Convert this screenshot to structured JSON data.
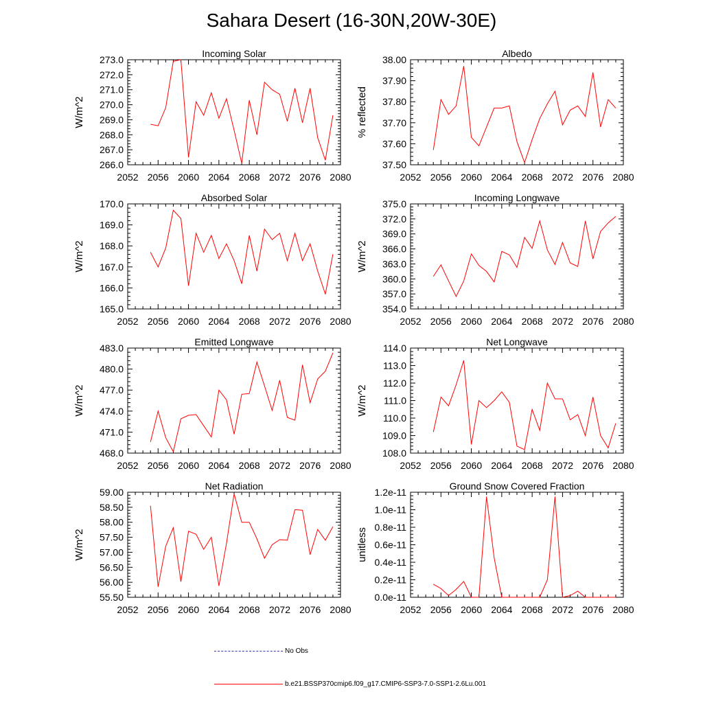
{
  "title": "Sahara Desert (16-30N,20W-30E)",
  "legend": {
    "obs_label": "No Obs",
    "model_label": "b.e21.BSSP370cmip6.f09_g17.CMIP6-SSP3-7.0-SSP1-2.6Lu.001",
    "obs_color": "#3333aa",
    "model_color": "#ff0000"
  },
  "chart_data": [
    {
      "type": "line",
      "title": "Incoming Solar",
      "ylabel": "W/m^2",
      "xlim": [
        2052,
        2080
      ],
      "ylim": [
        266.0,
        273.0
      ],
      "xticks": [
        2052,
        2056,
        2060,
        2064,
        2068,
        2072,
        2076,
        2080
      ],
      "yticks": [
        "266.0",
        "267.0",
        "268.0",
        "269.0",
        "270.0",
        "271.0",
        "272.0",
        "273.0"
      ],
      "x": [
        2055,
        2056,
        2057,
        2058,
        2059,
        2060,
        2061,
        2062,
        2063,
        2064,
        2065,
        2066,
        2067,
        2068,
        2069,
        2070,
        2071,
        2072,
        2073,
        2074,
        2075,
        2076,
        2077,
        2078,
        2079
      ],
      "values": [
        268.7,
        268.6,
        269.8,
        272.9,
        273.0,
        266.5,
        270.2,
        269.3,
        270.8,
        269.1,
        270.4,
        268.3,
        266.1,
        270.3,
        268.0,
        271.5,
        271.0,
        270.7,
        268.9,
        271.1,
        268.8,
        271.1,
        267.8,
        266.3,
        269.3
      ]
    },
    {
      "type": "line",
      "title": "Albedo",
      "ylabel": "% reflected",
      "xlim": [
        2052,
        2080
      ],
      "ylim": [
        37.5,
        38.0
      ],
      "xticks": [
        2052,
        2056,
        2060,
        2064,
        2068,
        2072,
        2076,
        2080
      ],
      "yticks": [
        "37.50",
        "37.60",
        "37.70",
        "37.80",
        "37.90",
        "38.00"
      ],
      "x": [
        2055,
        2056,
        2057,
        2058,
        2059,
        2060,
        2061,
        2062,
        2063,
        2064,
        2065,
        2066,
        2067,
        2068,
        2069,
        2070,
        2071,
        2072,
        2073,
        2074,
        2075,
        2076,
        2077,
        2078,
        2079
      ],
      "values": [
        37.57,
        37.81,
        37.74,
        37.78,
        37.97,
        37.63,
        37.59,
        37.68,
        37.77,
        37.77,
        37.78,
        37.61,
        37.51,
        37.62,
        37.72,
        37.79,
        37.85,
        37.69,
        37.76,
        37.78,
        37.73,
        37.94,
        37.68,
        37.81,
        37.77
      ]
    },
    {
      "type": "line",
      "title": "Absorbed Solar",
      "ylabel": "W/m^2",
      "xlim": [
        2052,
        2080
      ],
      "ylim": [
        165.0,
        170.0
      ],
      "xticks": [
        2052,
        2056,
        2060,
        2064,
        2068,
        2072,
        2076,
        2080
      ],
      "yticks": [
        "165.0",
        "166.0",
        "167.0",
        "168.0",
        "169.0",
        "170.0"
      ],
      "x": [
        2055,
        2056,
        2057,
        2058,
        2059,
        2060,
        2061,
        2062,
        2063,
        2064,
        2065,
        2066,
        2067,
        2068,
        2069,
        2070,
        2071,
        2072,
        2073,
        2074,
        2075,
        2076,
        2077,
        2078,
        2079
      ],
      "values": [
        167.7,
        167.0,
        167.9,
        169.7,
        169.3,
        166.1,
        168.6,
        167.7,
        168.5,
        167.4,
        168.1,
        167.3,
        166.2,
        168.5,
        166.8,
        168.8,
        168.3,
        168.6,
        167.3,
        168.6,
        167.3,
        168.1,
        166.8,
        165.7,
        167.6
      ]
    },
    {
      "type": "line",
      "title": "Incoming Longwave",
      "ylabel": "W/m^2",
      "xlim": [
        2052,
        2080
      ],
      "ylim": [
        354.0,
        375.0
      ],
      "xticks": [
        2052,
        2056,
        2060,
        2064,
        2068,
        2072,
        2076,
        2080
      ],
      "yticks": [
        "354.0",
        "357.0",
        "360.0",
        "363.0",
        "366.0",
        "369.0",
        "372.0",
        "375.0"
      ],
      "x": [
        2055,
        2056,
        2057,
        2058,
        2059,
        2060,
        2061,
        2062,
        2063,
        2064,
        2065,
        2066,
        2067,
        2068,
        2069,
        2070,
        2071,
        2072,
        2073,
        2074,
        2075,
        2076,
        2077,
        2078,
        2079
      ],
      "values": [
        360.5,
        362.8,
        359.6,
        356.5,
        359.6,
        365.0,
        362.7,
        361.5,
        359.4,
        365.5,
        364.8,
        362.3,
        368.3,
        366.1,
        371.6,
        365.8,
        362.9,
        367.3,
        363.2,
        362.5,
        371.6,
        364.0,
        369.5,
        371.2,
        372.5
      ]
    },
    {
      "type": "line",
      "title": "Emitted Longwave",
      "ylabel": "W/m^2",
      "xlim": [
        2052,
        2080
      ],
      "ylim": [
        468.0,
        483.0
      ],
      "xticks": [
        2052,
        2056,
        2060,
        2064,
        2068,
        2072,
        2076,
        2080
      ],
      "yticks": [
        "468.0",
        "471.0",
        "474.0",
        "477.0",
        "480.0",
        "483.0"
      ],
      "x": [
        2055,
        2056,
        2057,
        2058,
        2059,
        2060,
        2061,
        2062,
        2063,
        2064,
        2065,
        2066,
        2067,
        2068,
        2069,
        2070,
        2071,
        2072,
        2073,
        2074,
        2075,
        2076,
        2077,
        2078,
        2079
      ],
      "values": [
        469.6,
        474.0,
        470.2,
        468.2,
        472.9,
        473.4,
        473.5,
        471.9,
        470.3,
        477.0,
        475.6,
        470.7,
        476.4,
        476.5,
        481.0,
        477.6,
        474.1,
        478.4,
        473.1,
        472.7,
        480.6,
        475.2,
        478.6,
        479.7,
        482.3
      ]
    },
    {
      "type": "line",
      "title": "Net Longwave",
      "ylabel": "W/m^2",
      "xlim": [
        2052,
        2080
      ],
      "ylim": [
        108.0,
        114.0
      ],
      "xticks": [
        2052,
        2056,
        2060,
        2064,
        2068,
        2072,
        2076,
        2080
      ],
      "yticks": [
        "108.0",
        "109.0",
        "110.0",
        "111.0",
        "112.0",
        "113.0",
        "114.0"
      ],
      "x": [
        2055,
        2056,
        2057,
        2058,
        2059,
        2060,
        2061,
        2062,
        2063,
        2064,
        2065,
        2066,
        2067,
        2068,
        2069,
        2070,
        2071,
        2072,
        2073,
        2074,
        2075,
        2076,
        2077,
        2078,
        2079
      ],
      "values": [
        109.2,
        111.2,
        110.7,
        111.9,
        113.3,
        108.5,
        111.0,
        110.6,
        111.0,
        111.5,
        110.9,
        108.4,
        108.2,
        110.5,
        109.3,
        112.0,
        111.1,
        111.1,
        109.9,
        110.2,
        109.0,
        111.2,
        109.0,
        108.3,
        109.7
      ]
    },
    {
      "type": "line",
      "title": "Net Radiation",
      "ylabel": "W/m^2",
      "xlim": [
        2052,
        2080
      ],
      "ylim": [
        55.5,
        59.0
      ],
      "xticks": [
        2052,
        2056,
        2060,
        2064,
        2068,
        2072,
        2076,
        2080
      ],
      "yticks": [
        "55.50",
        "56.00",
        "56.50",
        "57.00",
        "57.50",
        "58.00",
        "58.50",
        "59.00"
      ],
      "x": [
        2055,
        2056,
        2057,
        2058,
        2059,
        2060,
        2061,
        2062,
        2063,
        2064,
        2065,
        2066,
        2067,
        2068,
        2069,
        2070,
        2071,
        2072,
        2073,
        2074,
        2075,
        2076,
        2077,
        2078,
        2079
      ],
      "values": [
        58.55,
        55.85,
        57.2,
        57.82,
        56.02,
        57.7,
        57.6,
        57.1,
        57.5,
        55.88,
        57.3,
        58.95,
        58.0,
        58.0,
        57.45,
        56.8,
        57.25,
        57.42,
        57.4,
        58.42,
        58.4,
        56.92,
        57.76,
        57.4,
        57.85
      ]
    },
    {
      "type": "line",
      "title": "Ground Snow Covered Fraction",
      "ylabel": "unitless",
      "xlim": [
        2052,
        2080
      ],
      "ylim": [
        0,
        1.2e-11
      ],
      "xticks": [
        2052,
        2056,
        2060,
        2064,
        2068,
        2072,
        2076,
        2080
      ],
      "yticks": [
        "0.0e-11",
        "0.2e-11",
        "0.4e-11",
        "0.6e-11",
        "0.8e-11",
        "1.0e-11",
        "1.2e-11"
      ],
      "x": [
        2055,
        2056,
        2057,
        2058,
        2059,
        2060,
        2061,
        2062,
        2063,
        2064,
        2065,
        2066,
        2067,
        2068,
        2069,
        2070,
        2071,
        2072,
        2073,
        2074,
        2075,
        2076,
        2077,
        2078,
        2079
      ],
      "values": [
        1.5e-12,
        1e-12,
        2e-13,
        9e-13,
        1.8e-12,
        0,
        0,
        1.15e-11,
        4.5e-12,
        0,
        0,
        0,
        0,
        0,
        0,
        2e-12,
        1.15e-11,
        0,
        2e-13,
        7e-13,
        0,
        0,
        0,
        0,
        0
      ]
    }
  ]
}
